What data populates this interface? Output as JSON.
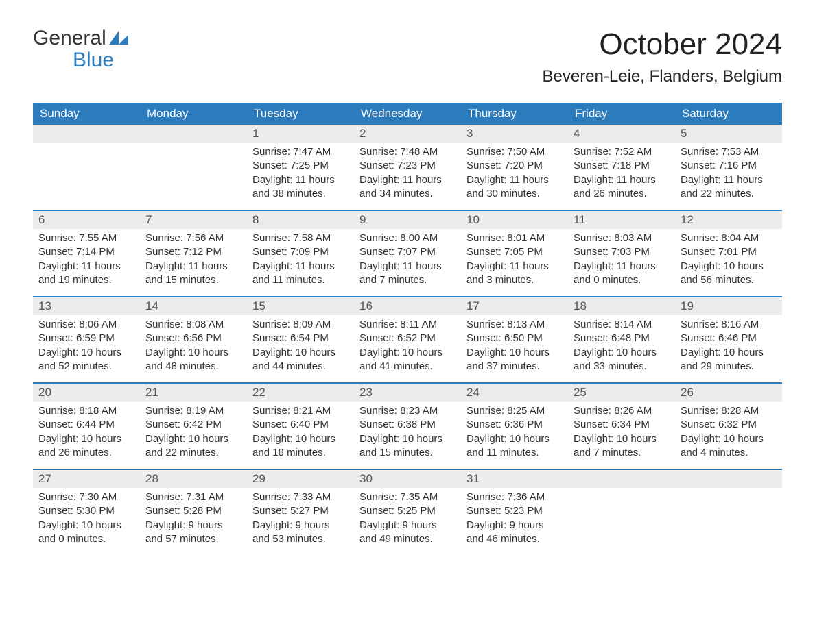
{
  "logo": {
    "top": "General",
    "bottom": "  Blue"
  },
  "month_title": "October 2024",
  "location": "Beveren-Leie, Flanders, Belgium",
  "weekdays": [
    "Sunday",
    "Monday",
    "Tuesday",
    "Wednesday",
    "Thursday",
    "Friday",
    "Saturday"
  ],
  "colors": {
    "header_bg": "#2b7bbd",
    "header_text": "#ffffff",
    "daynum_bg": "#ececec",
    "row_border": "#2b7bbd",
    "logo_blue": "#2b7bbd",
    "text": "#333333"
  },
  "weeks": [
    [
      {
        "n": "",
        "sunrise": "",
        "sunset": "",
        "daylight": ""
      },
      {
        "n": "",
        "sunrise": "",
        "sunset": "",
        "daylight": ""
      },
      {
        "n": "1",
        "sunrise": "Sunrise: 7:47 AM",
        "sunset": "Sunset: 7:25 PM",
        "daylight": "Daylight: 11 hours and 38 minutes."
      },
      {
        "n": "2",
        "sunrise": "Sunrise: 7:48 AM",
        "sunset": "Sunset: 7:23 PM",
        "daylight": "Daylight: 11 hours and 34 minutes."
      },
      {
        "n": "3",
        "sunrise": "Sunrise: 7:50 AM",
        "sunset": "Sunset: 7:20 PM",
        "daylight": "Daylight: 11 hours and 30 minutes."
      },
      {
        "n": "4",
        "sunrise": "Sunrise: 7:52 AM",
        "sunset": "Sunset: 7:18 PM",
        "daylight": "Daylight: 11 hours and 26 minutes."
      },
      {
        "n": "5",
        "sunrise": "Sunrise: 7:53 AM",
        "sunset": "Sunset: 7:16 PM",
        "daylight": "Daylight: 11 hours and 22 minutes."
      }
    ],
    [
      {
        "n": "6",
        "sunrise": "Sunrise: 7:55 AM",
        "sunset": "Sunset: 7:14 PM",
        "daylight": "Daylight: 11 hours and 19 minutes."
      },
      {
        "n": "7",
        "sunrise": "Sunrise: 7:56 AM",
        "sunset": "Sunset: 7:12 PM",
        "daylight": "Daylight: 11 hours and 15 minutes."
      },
      {
        "n": "8",
        "sunrise": "Sunrise: 7:58 AM",
        "sunset": "Sunset: 7:09 PM",
        "daylight": "Daylight: 11 hours and 11 minutes."
      },
      {
        "n": "9",
        "sunrise": "Sunrise: 8:00 AM",
        "sunset": "Sunset: 7:07 PM",
        "daylight": "Daylight: 11 hours and 7 minutes."
      },
      {
        "n": "10",
        "sunrise": "Sunrise: 8:01 AM",
        "sunset": "Sunset: 7:05 PM",
        "daylight": "Daylight: 11 hours and 3 minutes."
      },
      {
        "n": "11",
        "sunrise": "Sunrise: 8:03 AM",
        "sunset": "Sunset: 7:03 PM",
        "daylight": "Daylight: 11 hours and 0 minutes."
      },
      {
        "n": "12",
        "sunrise": "Sunrise: 8:04 AM",
        "sunset": "Sunset: 7:01 PM",
        "daylight": "Daylight: 10 hours and 56 minutes."
      }
    ],
    [
      {
        "n": "13",
        "sunrise": "Sunrise: 8:06 AM",
        "sunset": "Sunset: 6:59 PM",
        "daylight": "Daylight: 10 hours and 52 minutes."
      },
      {
        "n": "14",
        "sunrise": "Sunrise: 8:08 AM",
        "sunset": "Sunset: 6:56 PM",
        "daylight": "Daylight: 10 hours and 48 minutes."
      },
      {
        "n": "15",
        "sunrise": "Sunrise: 8:09 AM",
        "sunset": "Sunset: 6:54 PM",
        "daylight": "Daylight: 10 hours and 44 minutes."
      },
      {
        "n": "16",
        "sunrise": "Sunrise: 8:11 AM",
        "sunset": "Sunset: 6:52 PM",
        "daylight": "Daylight: 10 hours and 41 minutes."
      },
      {
        "n": "17",
        "sunrise": "Sunrise: 8:13 AM",
        "sunset": "Sunset: 6:50 PM",
        "daylight": "Daylight: 10 hours and 37 minutes."
      },
      {
        "n": "18",
        "sunrise": "Sunrise: 8:14 AM",
        "sunset": "Sunset: 6:48 PM",
        "daylight": "Daylight: 10 hours and 33 minutes."
      },
      {
        "n": "19",
        "sunrise": "Sunrise: 8:16 AM",
        "sunset": "Sunset: 6:46 PM",
        "daylight": "Daylight: 10 hours and 29 minutes."
      }
    ],
    [
      {
        "n": "20",
        "sunrise": "Sunrise: 8:18 AM",
        "sunset": "Sunset: 6:44 PM",
        "daylight": "Daylight: 10 hours and 26 minutes."
      },
      {
        "n": "21",
        "sunrise": "Sunrise: 8:19 AM",
        "sunset": "Sunset: 6:42 PM",
        "daylight": "Daylight: 10 hours and 22 minutes."
      },
      {
        "n": "22",
        "sunrise": "Sunrise: 8:21 AM",
        "sunset": "Sunset: 6:40 PM",
        "daylight": "Daylight: 10 hours and 18 minutes."
      },
      {
        "n": "23",
        "sunrise": "Sunrise: 8:23 AM",
        "sunset": "Sunset: 6:38 PM",
        "daylight": "Daylight: 10 hours and 15 minutes."
      },
      {
        "n": "24",
        "sunrise": "Sunrise: 8:25 AM",
        "sunset": "Sunset: 6:36 PM",
        "daylight": "Daylight: 10 hours and 11 minutes."
      },
      {
        "n": "25",
        "sunrise": "Sunrise: 8:26 AM",
        "sunset": "Sunset: 6:34 PM",
        "daylight": "Daylight: 10 hours and 7 minutes."
      },
      {
        "n": "26",
        "sunrise": "Sunrise: 8:28 AM",
        "sunset": "Sunset: 6:32 PM",
        "daylight": "Daylight: 10 hours and 4 minutes."
      }
    ],
    [
      {
        "n": "27",
        "sunrise": "Sunrise: 7:30 AM",
        "sunset": "Sunset: 5:30 PM",
        "daylight": "Daylight: 10 hours and 0 minutes."
      },
      {
        "n": "28",
        "sunrise": "Sunrise: 7:31 AM",
        "sunset": "Sunset: 5:28 PM",
        "daylight": "Daylight: 9 hours and 57 minutes."
      },
      {
        "n": "29",
        "sunrise": "Sunrise: 7:33 AM",
        "sunset": "Sunset: 5:27 PM",
        "daylight": "Daylight: 9 hours and 53 minutes."
      },
      {
        "n": "30",
        "sunrise": "Sunrise: 7:35 AM",
        "sunset": "Sunset: 5:25 PM",
        "daylight": "Daylight: 9 hours and 49 minutes."
      },
      {
        "n": "31",
        "sunrise": "Sunrise: 7:36 AM",
        "sunset": "Sunset: 5:23 PM",
        "daylight": "Daylight: 9 hours and 46 minutes."
      },
      {
        "n": "",
        "sunrise": "",
        "sunset": "",
        "daylight": ""
      },
      {
        "n": "",
        "sunrise": "",
        "sunset": "",
        "daylight": ""
      }
    ]
  ]
}
